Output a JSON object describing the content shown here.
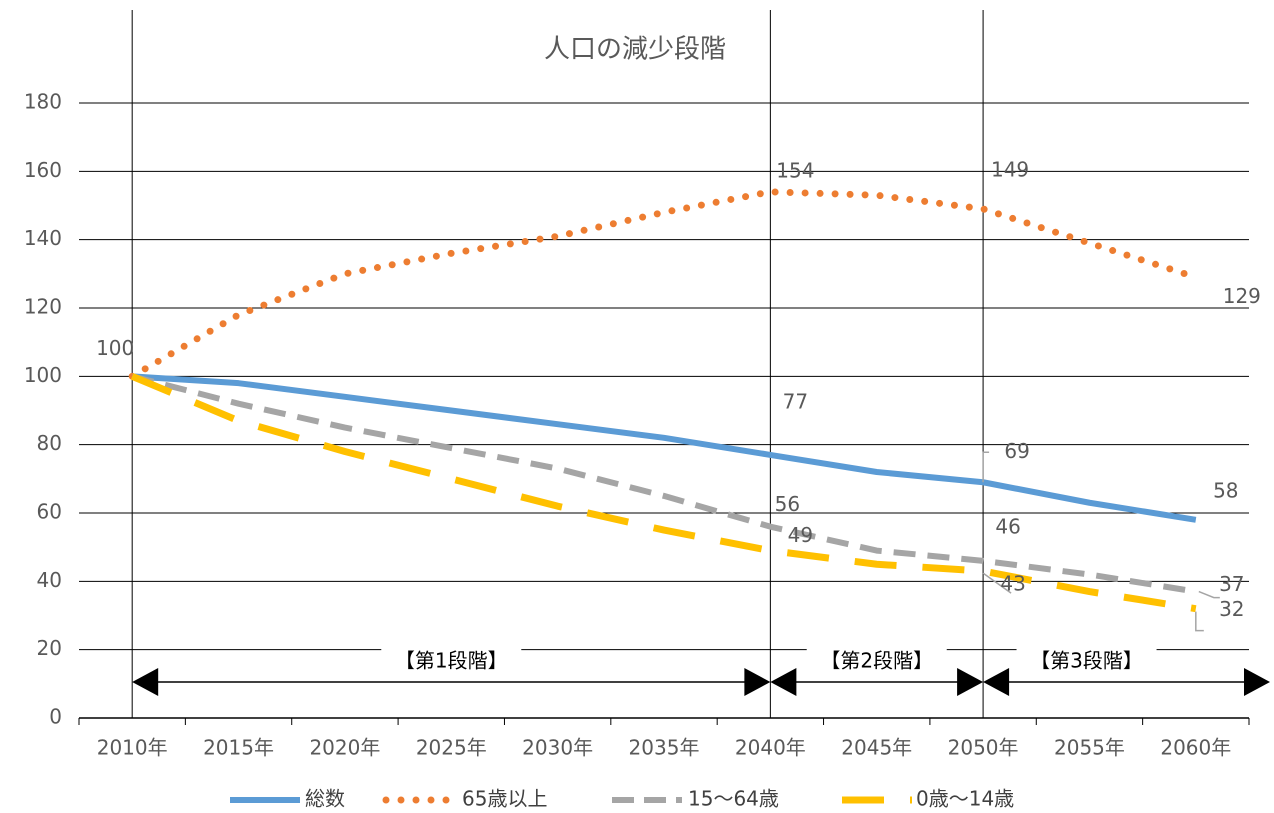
{
  "chart_data": {
    "type": "line",
    "title": "人口の減少段階",
    "categories": [
      "2010年",
      "2015年",
      "2020年",
      "2025年",
      "2030年",
      "2035年",
      "2040年",
      "2045年",
      "2050年",
      "2055年",
      "2060年"
    ],
    "series": [
      {
        "name": "総数",
        "color": "#5b9bd5",
        "values": [
          100,
          98,
          94,
          90,
          86,
          82,
          77,
          72,
          69,
          63,
          58
        ],
        "value_labels": [
          "100",
          null,
          null,
          null,
          null,
          null,
          "77",
          null,
          "69",
          null,
          "58"
        ]
      },
      {
        "name": "65歳以上",
        "color": "#ed7d31",
        "values": [
          100,
          118,
          130,
          136,
          141,
          148,
          154,
          153,
          149,
          139,
          129
        ],
        "value_labels": [
          null,
          null,
          null,
          null,
          null,
          null,
          "154",
          null,
          "149",
          null,
          "129"
        ]
      },
      {
        "name": "15～64歳",
        "color": "#a5a5a5",
        "values": [
          100,
          92,
          85,
          79,
          73,
          65,
          56,
          49,
          46,
          42,
          37
        ],
        "value_labels": [
          null,
          null,
          null,
          null,
          null,
          null,
          "56",
          null,
          "46",
          null,
          "37"
        ]
      },
      {
        "name": "0歳～14歳",
        "color": "#ffc000",
        "values": [
          100,
          87,
          78,
          70,
          62,
          55,
          49,
          45,
          43,
          37,
          32
        ],
        "value_labels": [
          null,
          null,
          null,
          null,
          null,
          null,
          "49",
          null,
          "43",
          null,
          "32"
        ]
      }
    ],
    "ylim": [
      0,
      180
    ],
    "yticks": [
      0,
      20,
      40,
      60,
      80,
      100,
      120,
      140,
      160,
      180
    ],
    "grid": true,
    "phases": [
      "【第1段階】",
      "【第2段階】",
      "【第3段階】"
    ]
  }
}
